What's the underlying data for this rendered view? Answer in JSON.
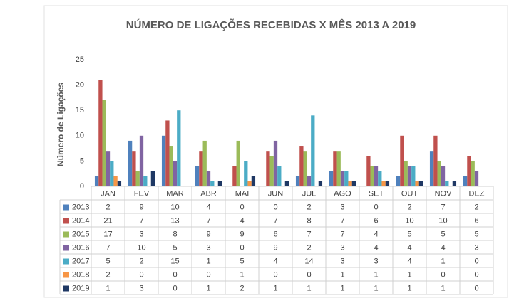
{
  "chart_data": {
    "type": "bar",
    "title": "NÚMERO DE LIGAÇÕES RECEBIDAS X MÊS 2013 A 2019",
    "y_label": "Número de Ligações",
    "categories": [
      "JAN",
      "FEV",
      "MAR",
      "ABR",
      "MAI",
      "JUN",
      "JUL",
      "AGO",
      "SET",
      "OUT",
      "NOV",
      "DEZ"
    ],
    "series": [
      {
        "name": "2013",
        "color": "#4f81bd",
        "values": [
          2,
          9,
          10,
          4,
          0,
          0,
          2,
          3,
          0,
          2,
          7,
          2
        ]
      },
      {
        "name": "2014",
        "color": "#c0504d",
        "values": [
          21,
          7,
          13,
          7,
          4,
          7,
          8,
          7,
          6,
          10,
          10,
          6
        ]
      },
      {
        "name": "2015",
        "color": "#9bbb59",
        "values": [
          17,
          3,
          8,
          9,
          9,
          6,
          7,
          7,
          4,
          5,
          5,
          5
        ]
      },
      {
        "name": "2016",
        "color": "#8064a2",
        "values": [
          7,
          10,
          5,
          3,
          0,
          9,
          2,
          3,
          4,
          4,
          4,
          3
        ]
      },
      {
        "name": "2017",
        "color": "#4bacc6",
        "values": [
          5,
          2,
          15,
          1,
          5,
          4,
          14,
          3,
          3,
          4,
          1,
          0
        ]
      },
      {
        "name": "2018",
        "color": "#f79646",
        "values": [
          2,
          0,
          0,
          0,
          1,
          0,
          0,
          1,
          1,
          1,
          0,
          0
        ]
      },
      {
        "name": "2019",
        "color": "#1f3864",
        "values": [
          1,
          3,
          0,
          1,
          2,
          1,
          1,
          1,
          1,
          1,
          1,
          0
        ]
      }
    ],
    "ylim": [
      0,
      25
    ],
    "yticks": [
      0,
      5,
      10,
      15,
      20,
      25
    ],
    "grid": false
  }
}
